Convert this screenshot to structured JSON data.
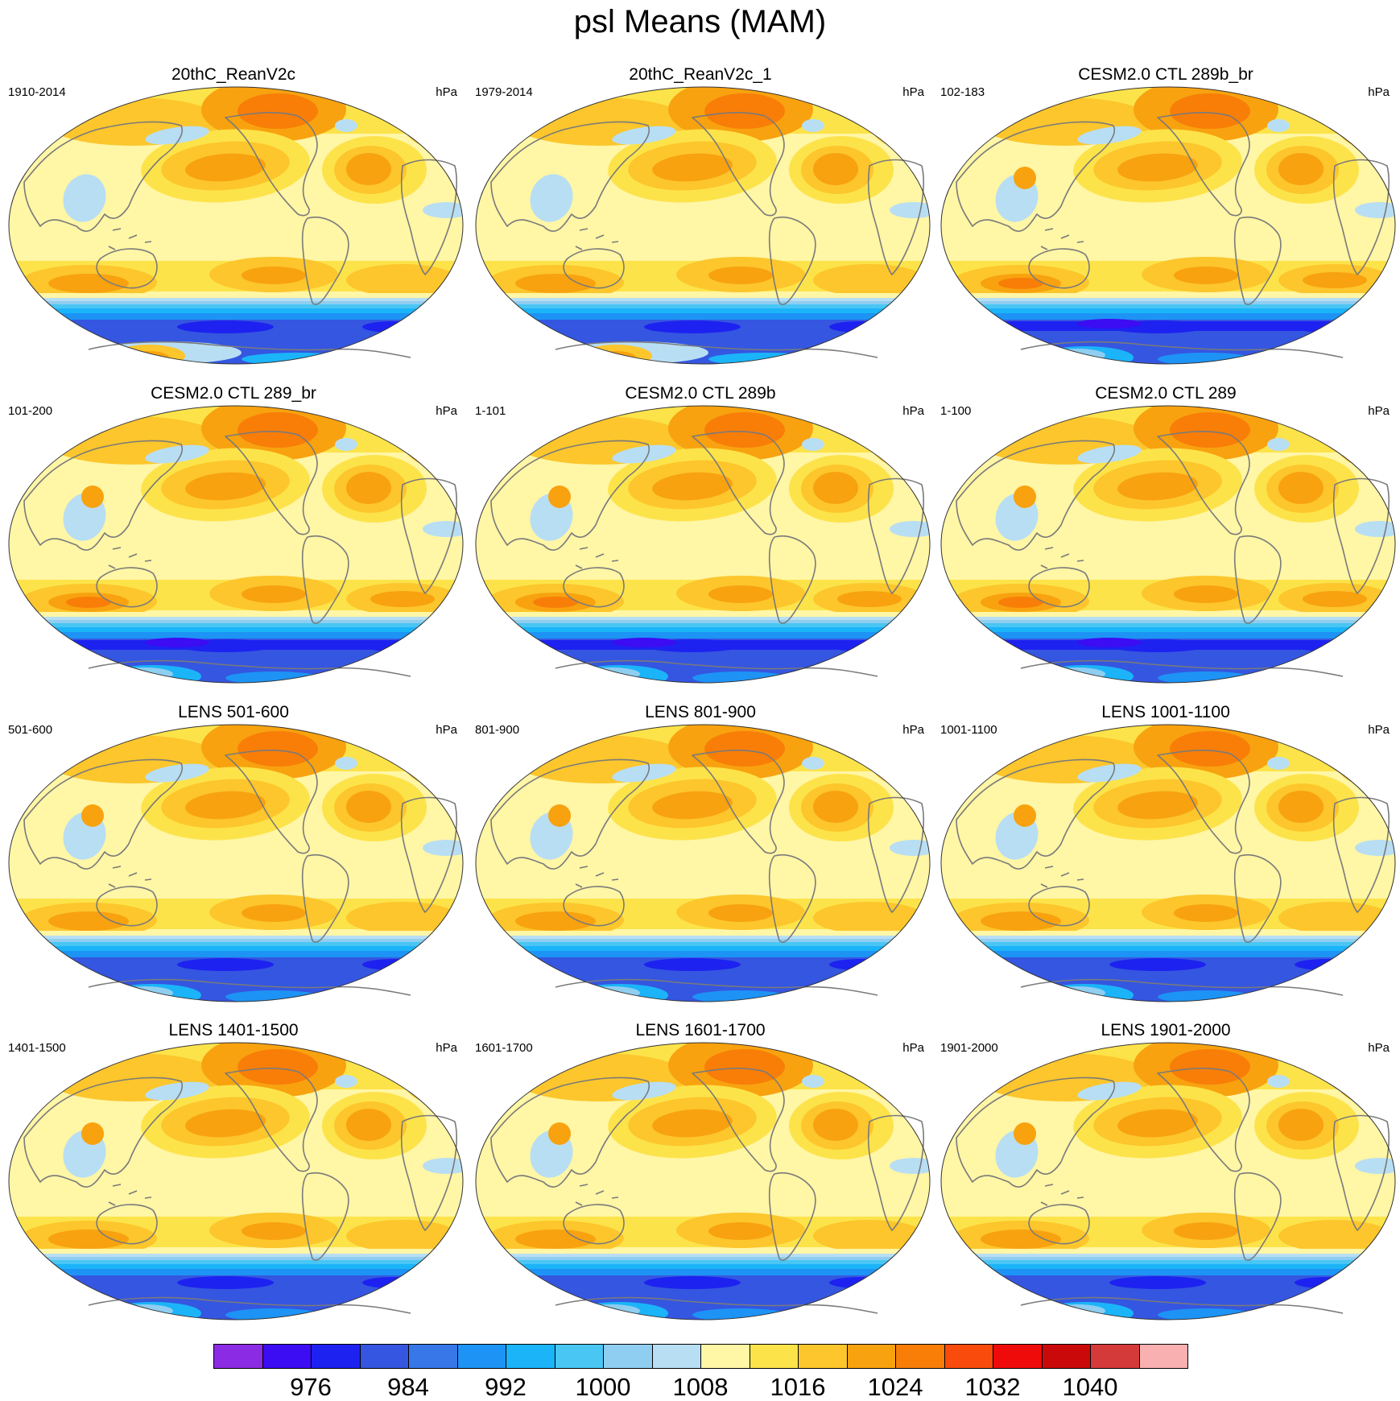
{
  "figure": {
    "title": "psl Means (MAM)"
  },
  "colors": {
    "ocean_base": "#fff6a6",
    "coast": "#7a7a7a",
    "levels": [
      "#8b2be3",
      "#3c0cf2",
      "#1d22f0",
      "#3556e0",
      "#3777e8",
      "#1d93f5",
      "#1bb4f9",
      "#49c6f4",
      "#8fcef0",
      "#b8def4",
      "#fff6a6",
      "#fde34a",
      "#fcc62c",
      "#f8a20f",
      "#f87e08",
      "#f84b0c",
      "#f00b0b",
      "#ca0a0a",
      "#d53a3a",
      "#f9b0b0"
    ]
  },
  "colorbar": {
    "labels": [
      "976",
      "984",
      "992",
      "1000",
      "1008",
      "1016",
      "1024",
      "1032",
      "1040"
    ]
  },
  "panels": [
    {
      "title": "20thC_ReanV2c",
      "period": "1910-2014",
      "units": "hPa",
      "variant": "obs"
    },
    {
      "title": "20thC_ReanV2c_1",
      "period": "1979-2014",
      "units": "hPa",
      "variant": "obs"
    },
    {
      "title": "CESM2.0 CTL 289b_br",
      "period": "102-183",
      "units": "hPa",
      "variant": "model"
    },
    {
      "title": "CESM2.0 CTL 289_br",
      "period": "101-200",
      "units": "hPa",
      "variant": "model"
    },
    {
      "title": "CESM2.0 CTL 289b",
      "period": "1-101",
      "units": "hPa",
      "variant": "model"
    },
    {
      "title": "CESM2.0 CTL 289",
      "period": "1-100",
      "units": "hPa",
      "variant": "model"
    },
    {
      "title": "LENS 501-600",
      "period": "501-600",
      "units": "hPa",
      "variant": "lens"
    },
    {
      "title": "LENS 801-900",
      "period": "801-900",
      "units": "hPa",
      "variant": "lens"
    },
    {
      "title": "LENS 1001-1100",
      "period": "1001-1100",
      "units": "hPa",
      "variant": "lens"
    },
    {
      "title": "LENS 1401-1500",
      "period": "1401-1500",
      "units": "hPa",
      "variant": "lens"
    },
    {
      "title": "LENS 1601-1700",
      "period": "1601-1700",
      "units": "hPa",
      "variant": "lens"
    },
    {
      "title": "LENS 1901-2000",
      "period": "1901-2000",
      "units": "hPa",
      "variant": "lens"
    }
  ]
}
